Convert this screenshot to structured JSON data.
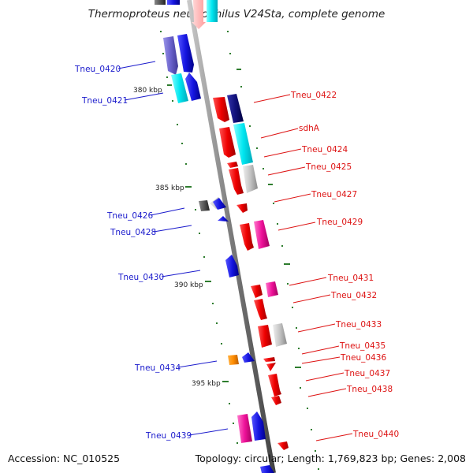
{
  "title": "Thermoproteus neutrophilus V24Sta, complete genome",
  "accession": "Accession: NC_010525",
  "summary": "Topology: circular; Length: 1,769,823 bp; Genes: 2,008",
  "colors": {
    "left_label": "#1a1acc",
    "right_label": "#dd1111",
    "tick": "#2e7d2e",
    "backbone": "#8a8a8a"
  },
  "kbp_labels": [
    "380 kbp",
    "385 kbp",
    "390 kbp",
    "395 kbp"
  ],
  "left_genes": [
    "Tneu_0420",
    "Tneu_0421",
    "Tneu_0426",
    "Tneu_0428",
    "Tneu_0430",
    "Tneu_0434",
    "Tneu_0439"
  ],
  "right_genes": [
    "Tneu_0422",
    "sdhA",
    "Tneu_0424",
    "Tneu_0425",
    "Tneu_0427",
    "Tneu_0429",
    "Tneu_0431",
    "Tneu_0432",
    "Tneu_0433",
    "Tneu_0435",
    "Tneu_0436",
    "Tneu_0437",
    "Tneu_0438",
    "Tneu_0440"
  ]
}
